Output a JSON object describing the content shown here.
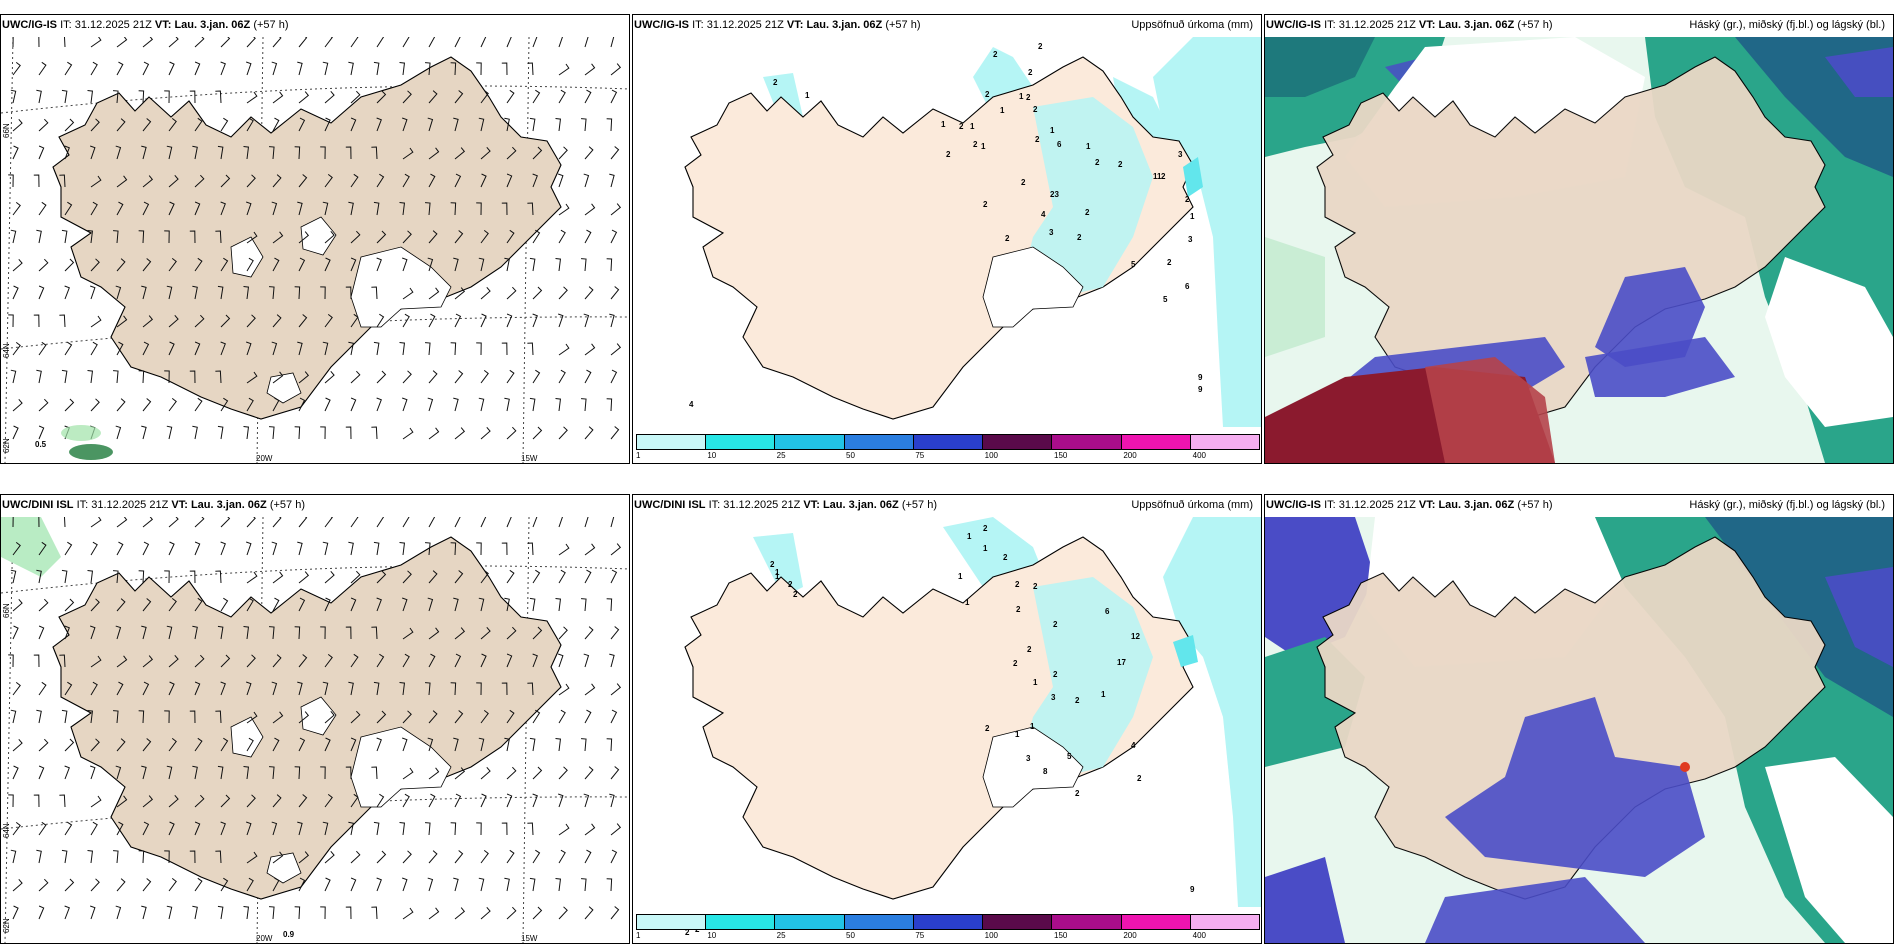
{
  "colors": {
    "land": "#e6d6c3",
    "land_precip": "#fbeadb",
    "precip_light": "#b5f5f5",
    "precip_mid": "#62e6ec",
    "cloud_high": "#4a4cc6",
    "cloud_mid": "#2aa58a",
    "cloud_low": "#c9edd4",
    "cloud_red": "#8b1a2e"
  },
  "rows": [
    {
      "model": "UWC/IG-IS",
      "it_label": "IT:",
      "it_value": "31.12.2025 21Z",
      "vt_label": "VT:",
      "vt_value": "Lau. 3.jan. 06Z",
      "lead": "(+57 h)",
      "wind_value": "0.5",
      "precip_numbers": [
        "2",
        "2",
        "2",
        "2",
        "1",
        "1",
        "2",
        "2",
        "1",
        "2",
        "1",
        "2",
        "1",
        "2",
        "1",
        "2",
        "2",
        "6",
        "1",
        "1",
        "2",
        "2",
        "11",
        "2",
        "2",
        "23",
        "2",
        "3",
        "2",
        "1",
        "3",
        "2",
        "4",
        "3",
        "2",
        "2",
        "5",
        "2",
        "6",
        "5",
        "9",
        "9",
        "4"
      ]
    },
    {
      "model": "UWC/DINI ISL",
      "it_label": "IT:",
      "it_value": "31.12.2025 21Z",
      "vt_label": "VT:",
      "vt_value": "Lau. 3.jan. 06Z",
      "lead": "(+57 h)",
      "wind_value": "0.9",
      "precip_numbers": [
        "1",
        "2",
        "1",
        "2",
        "1",
        "2",
        "1",
        "2",
        "2",
        "2",
        "2",
        "1",
        "2",
        "6",
        "12",
        "2",
        "2",
        "1",
        "2",
        "17",
        "1",
        "2",
        "3",
        "1",
        "2",
        "3",
        "2",
        "2",
        "4",
        "8",
        "2",
        "5",
        "9",
        "2",
        "2",
        "1",
        "1"
      ]
    }
  ],
  "precip_panel": {
    "title": "Uppsöfnuð úrkoma (mm)",
    "scale_labels": [
      "1",
      "10",
      "25",
      "50",
      "75",
      "100",
      "150",
      "200",
      "400"
    ],
    "scale_colors": [
      "#c8f7f7",
      "#28e6e6",
      "#22c3e6",
      "#2b7ee0",
      "#2a3fcc",
      "#5a0a4a",
      "#a80d8a",
      "#ee14b0",
      "#f5aef0"
    ]
  },
  "cloud_panel": {
    "title": "Háský (gr.), miðský (fj.bl.) og lágský (bl.)"
  },
  "axis_labels": {
    "lat_66": "66N",
    "lat_64": "64N",
    "lat_62": "62N",
    "lon_20": "20W",
    "lon_15": "15W",
    "lat_65": "65N",
    "lat_64b": "64N"
  }
}
